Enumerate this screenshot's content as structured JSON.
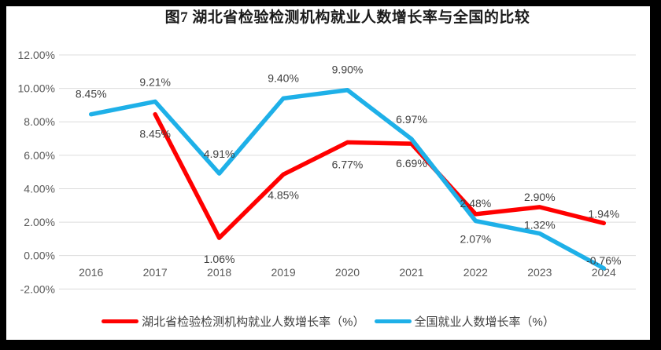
{
  "title": "图7 湖北省检验检测机构就业人数增长率与全国的比较",
  "colors": {
    "frame": "#000000",
    "background": "#FFFFFF",
    "grid": "#DCDCDC",
    "axis_text": "#595959",
    "data_label_text": "#404040",
    "title_text": "#1A1A1A",
    "legend_text": "#404040",
    "hubei_red": "#FF0000",
    "national_blue": "#1EB0E8"
  },
  "chart_data": {
    "type": "line",
    "title": "图7 湖北省检验检测机构就业人数增长率与全国的比较",
    "categories": [
      "2016",
      "2017",
      "2018",
      "2019",
      "2020",
      "2021",
      "2022",
      "2023",
      "2024"
    ],
    "series": [
      {
        "name": "湖北省检验检测机构就业人数增长率（%）",
        "color": "#FF0000",
        "values": [
          null,
          8.45,
          1.06,
          4.85,
          6.77,
          6.69,
          2.48,
          2.9,
          1.94
        ],
        "point_labels": [
          "",
          "8.45%",
          "1.06%",
          "4.85%",
          "6.77%",
          "6.69%",
          "2.48%",
          "2.90%",
          "1.94%"
        ],
        "label_dy": [
          0,
          25,
          27,
          26,
          28,
          25,
          -14,
          -13,
          -12
        ]
      },
      {
        "name": "全国就业人数增长率（%）",
        "color": "#1EB0E8",
        "values": [
          8.45,
          9.21,
          4.91,
          9.4,
          9.9,
          6.97,
          2.07,
          1.32,
          -0.76
        ],
        "point_labels": [
          "8.45%",
          "9.21%",
          "4.91%",
          "9.40%",
          "9.90%",
          "6.97%",
          "2.07%",
          "1.32%",
          "-0.76%"
        ],
        "label_dy": [
          -26,
          -25,
          -25,
          -26,
          -26,
          -25,
          23,
          -11,
          -10
        ]
      }
    ],
    "ylim": [
      -2,
      12
    ],
    "yticks": [
      12,
      10,
      8,
      6,
      4,
      2,
      0,
      -2
    ],
    "ytick_labels": [
      "12.00%",
      "10.00%",
      "8.00%",
      "6.00%",
      "4.00%",
      "2.00%",
      "0.00%",
      "-2.00%"
    ],
    "grid": true,
    "legend_position": "bottom"
  }
}
